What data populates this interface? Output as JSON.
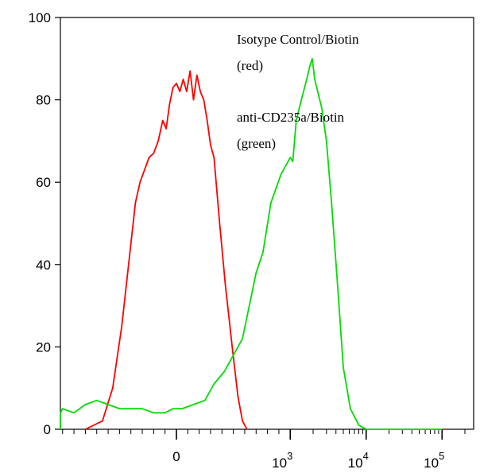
{
  "chart_data": {
    "type": "line",
    "title": "",
    "xlabel": "",
    "ylabel": "",
    "x_scale": "biexponential",
    "ylim": [
      0,
      100
    ],
    "y_ticks": [
      0,
      20,
      40,
      60,
      80,
      100
    ],
    "x_ticks": [
      {
        "label": "0",
        "value": 0
      },
      {
        "label": "10",
        "exp": "3",
        "value": 1000
      },
      {
        "label": "10",
        "exp": "4",
        "value": 10000
      },
      {
        "label": "10",
        "exp": "5",
        "value": 100000
      }
    ],
    "grid": false,
    "annotations": [
      {
        "lines": [
          "Isotype Control/Biotin",
          "(red)"
        ]
      },
      {
        "lines": [
          "anti-CD235a/Biotin",
          "(green)"
        ]
      }
    ],
    "series": [
      {
        "color": "#ff0000",
        "points": [
          [
            -800,
            0
          ],
          [
            -650,
            2
          ],
          [
            -560,
            10
          ],
          [
            -480,
            25
          ],
          [
            -420,
            40
          ],
          [
            -360,
            55
          ],
          [
            -320,
            60
          ],
          [
            -280,
            63
          ],
          [
            -240,
            66
          ],
          [
            -200,
            67
          ],
          [
            -160,
            70
          ],
          [
            -120,
            75
          ],
          [
            -90,
            73
          ],
          [
            -60,
            79
          ],
          [
            -30,
            83
          ],
          [
            0,
            84
          ],
          [
            30,
            82
          ],
          [
            60,
            85
          ],
          [
            90,
            82
          ],
          [
            120,
            87
          ],
          [
            150,
            80
          ],
          [
            180,
            86
          ],
          [
            210,
            82
          ],
          [
            240,
            80
          ],
          [
            270,
            75
          ],
          [
            300,
            69
          ],
          [
            330,
            66
          ],
          [
            380,
            50
          ],
          [
            430,
            35
          ],
          [
            490,
            20
          ],
          [
            540,
            8
          ],
          [
            580,
            2
          ],
          [
            620,
            0
          ]
        ]
      },
      {
        "color": "#00dd00",
        "points": [
          [
            -1300,
            0
          ],
          [
            -1200,
            2
          ],
          [
            -1100,
            4
          ],
          [
            -1000,
            5
          ],
          [
            -900,
            4
          ],
          [
            -800,
            6
          ],
          [
            -700,
            7
          ],
          [
            -600,
            6
          ],
          [
            -500,
            5
          ],
          [
            -400,
            5
          ],
          [
            -300,
            5
          ],
          [
            -200,
            4
          ],
          [
            -100,
            4
          ],
          [
            -30,
            5
          ],
          [
            50,
            5
          ],
          [
            150,
            6
          ],
          [
            250,
            7
          ],
          [
            330,
            11
          ],
          [
            420,
            14
          ],
          [
            500,
            18
          ],
          [
            580,
            22
          ],
          [
            640,
            30
          ],
          [
            700,
            38
          ],
          [
            760,
            43
          ],
          [
            830,
            55
          ],
          [
            920,
            62
          ],
          [
            1000,
            66
          ],
          [
            1080,
            65
          ],
          [
            1200,
            75
          ],
          [
            1400,
            80
          ],
          [
            1650,
            85
          ],
          [
            1800,
            88
          ],
          [
            1950,
            90
          ],
          [
            2100,
            85
          ],
          [
            2300,
            82
          ],
          [
            2600,
            78
          ],
          [
            3000,
            70
          ],
          [
            3500,
            55
          ],
          [
            4200,
            35
          ],
          [
            5000,
            15
          ],
          [
            6200,
            5
          ],
          [
            8000,
            1
          ],
          [
            10000,
            0
          ],
          [
            100000,
            0
          ]
        ]
      }
    ]
  }
}
